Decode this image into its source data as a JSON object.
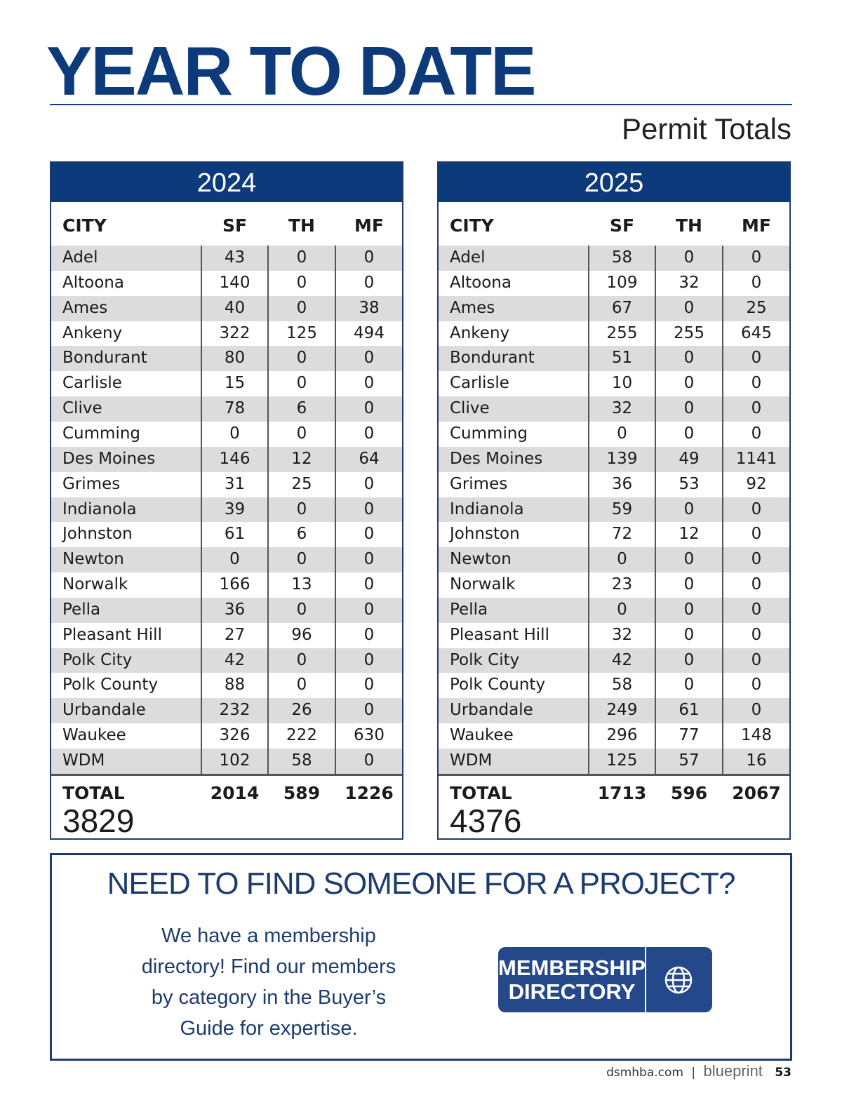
{
  "header": {
    "title": "YEAR TO DATE",
    "subtitle": "Permit Totals"
  },
  "tables": [
    {
      "year": "2024",
      "columns": [
        "CITY",
        "SF",
        "TH",
        "MF"
      ],
      "rows": [
        [
          "Adel",
          43,
          0,
          0
        ],
        [
          "Altoona",
          140,
          0,
          0
        ],
        [
          "Ames",
          40,
          0,
          38
        ],
        [
          "Ankeny",
          322,
          125,
          494
        ],
        [
          "Bondurant",
          80,
          0,
          0
        ],
        [
          "Carlisle",
          15,
          0,
          0
        ],
        [
          "Clive",
          78,
          6,
          0
        ],
        [
          "Cumming",
          0,
          0,
          0
        ],
        [
          "Des Moines",
          146,
          12,
          64
        ],
        [
          "Grimes",
          31,
          25,
          0
        ],
        [
          "Indianola",
          39,
          0,
          0
        ],
        [
          "Johnston",
          61,
          6,
          0
        ],
        [
          "Newton",
          0,
          0,
          0
        ],
        [
          "Norwalk",
          166,
          13,
          0
        ],
        [
          "Pella",
          36,
          0,
          0
        ],
        [
          "Pleasant Hill",
          27,
          96,
          0
        ],
        [
          "Polk City",
          42,
          0,
          0
        ],
        [
          "Polk County",
          88,
          0,
          0
        ],
        [
          "Urbandale",
          232,
          26,
          0
        ],
        [
          "Waukee",
          326,
          222,
          630
        ],
        [
          "WDM",
          102,
          58,
          0
        ]
      ],
      "total": {
        "label": "TOTAL",
        "values": [
          2014,
          589,
          1226
        ],
        "grand": 3829
      }
    },
    {
      "year": "2025",
      "columns": [
        "CITY",
        "SF",
        "TH",
        "MF"
      ],
      "rows": [
        [
          "Adel",
          58,
          0,
          0
        ],
        [
          "Altoona",
          109,
          32,
          0
        ],
        [
          "Ames",
          67,
          0,
          25
        ],
        [
          "Ankeny",
          255,
          255,
          645
        ],
        [
          "Bondurant",
          51,
          0,
          0
        ],
        [
          "Carlisle",
          10,
          0,
          0
        ],
        [
          "Clive",
          32,
          0,
          0
        ],
        [
          "Cumming",
          0,
          0,
          0
        ],
        [
          "Des Moines",
          139,
          49,
          1141
        ],
        [
          "Grimes",
          36,
          53,
          92
        ],
        [
          "Indianola",
          59,
          0,
          0
        ],
        [
          "Johnston",
          72,
          12,
          0
        ],
        [
          "Newton",
          0,
          0,
          0
        ],
        [
          "Norwalk",
          23,
          0,
          0
        ],
        [
          "Pella",
          0,
          0,
          0
        ],
        [
          "Pleasant Hill",
          32,
          0,
          0
        ],
        [
          "Polk City",
          42,
          0,
          0
        ],
        [
          "Polk County",
          58,
          0,
          0
        ],
        [
          "Urbandale",
          249,
          61,
          0
        ],
        [
          "Waukee",
          296,
          77,
          148
        ],
        [
          "WDM",
          125,
          57,
          16
        ]
      ],
      "total": {
        "label": "TOTAL",
        "values": [
          1713,
          596,
          2067
        ],
        "grand": 4376
      }
    }
  ],
  "promo": {
    "heading": "NEED TO FIND SOMEONE FOR A PROJECT?",
    "lines": [
      "We have a membership",
      "directory! Find our members",
      "by category in the Buyer’s",
      "Guide for expertise."
    ],
    "button": [
      "MEMBERSHIP",
      "DIRECTORY"
    ]
  },
  "footer": {
    "site": "dsmhba.com",
    "separator": "|",
    "brand": "blueprint",
    "page": "53"
  }
}
